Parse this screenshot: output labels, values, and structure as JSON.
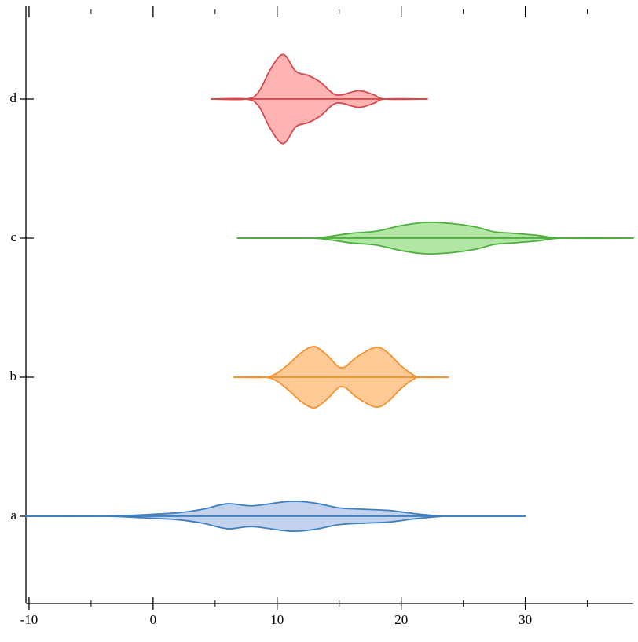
{
  "chart_data": {
    "type": "violin",
    "categories": [
      "a",
      "b",
      "c",
      "d"
    ],
    "xlim": [
      -10.25,
      38.7
    ],
    "xticks": [
      -10,
      0,
      10,
      20,
      30
    ],
    "xminorticks": [
      -5,
      5,
      15,
      25,
      35
    ],
    "series": [
      {
        "color": "#3f7fc0",
        "fill": "#c3d3ee",
        "x": [
          -10.25,
          -4,
          -1,
          2,
          4,
          6,
          8,
          11,
          13,
          15,
          17,
          19,
          21,
          23,
          24,
          30
        ],
        "values": [
          0,
          0,
          0.01,
          0.025,
          0.05,
          0.09,
          0.075,
          0.107,
          0.095,
          0.06,
          0.05,
          0.042,
          0.02,
          0.003,
          0,
          0
        ]
      },
      {
        "color": "#f5922e",
        "fill": "#ffca96",
        "x": [
          6.5,
          9,
          10,
          11,
          12,
          13,
          14,
          15.2,
          16.5,
          18,
          19,
          20,
          21,
          21.5,
          23.8
        ],
        "values": [
          0,
          0,
          0.03,
          0.1,
          0.18,
          0.22,
          0.16,
          0.068,
          0.15,
          0.215,
          0.17,
          0.08,
          0.015,
          0,
          0
        ]
      },
      {
        "color": "#4daf3c",
        "fill": "#b2e6a5",
        "x": [
          6.8,
          12.5,
          14,
          16,
          18,
          20,
          22,
          24,
          26,
          27.5,
          29,
          31,
          33,
          38.7
        ],
        "values": [
          0,
          0,
          0.01,
          0.035,
          0.05,
          0.09,
          0.113,
          0.105,
          0.08,
          0.045,
          0.035,
          0.02,
          0,
          0
        ]
      },
      {
        "color": "#d9464a",
        "fill": "#ffb3b3",
        "x": [
          4.7,
          7.5,
          8.5,
          9.5,
          10.5,
          11.5,
          12.5,
          13.5,
          14.5,
          15.2,
          16.6,
          17.8,
          18.7,
          22.1
        ],
        "values": [
          0,
          0,
          0.05,
          0.22,
          0.32,
          0.2,
          0.17,
          0.12,
          0.04,
          0.03,
          0.06,
          0.03,
          0,
          0
        ]
      }
    ]
  }
}
